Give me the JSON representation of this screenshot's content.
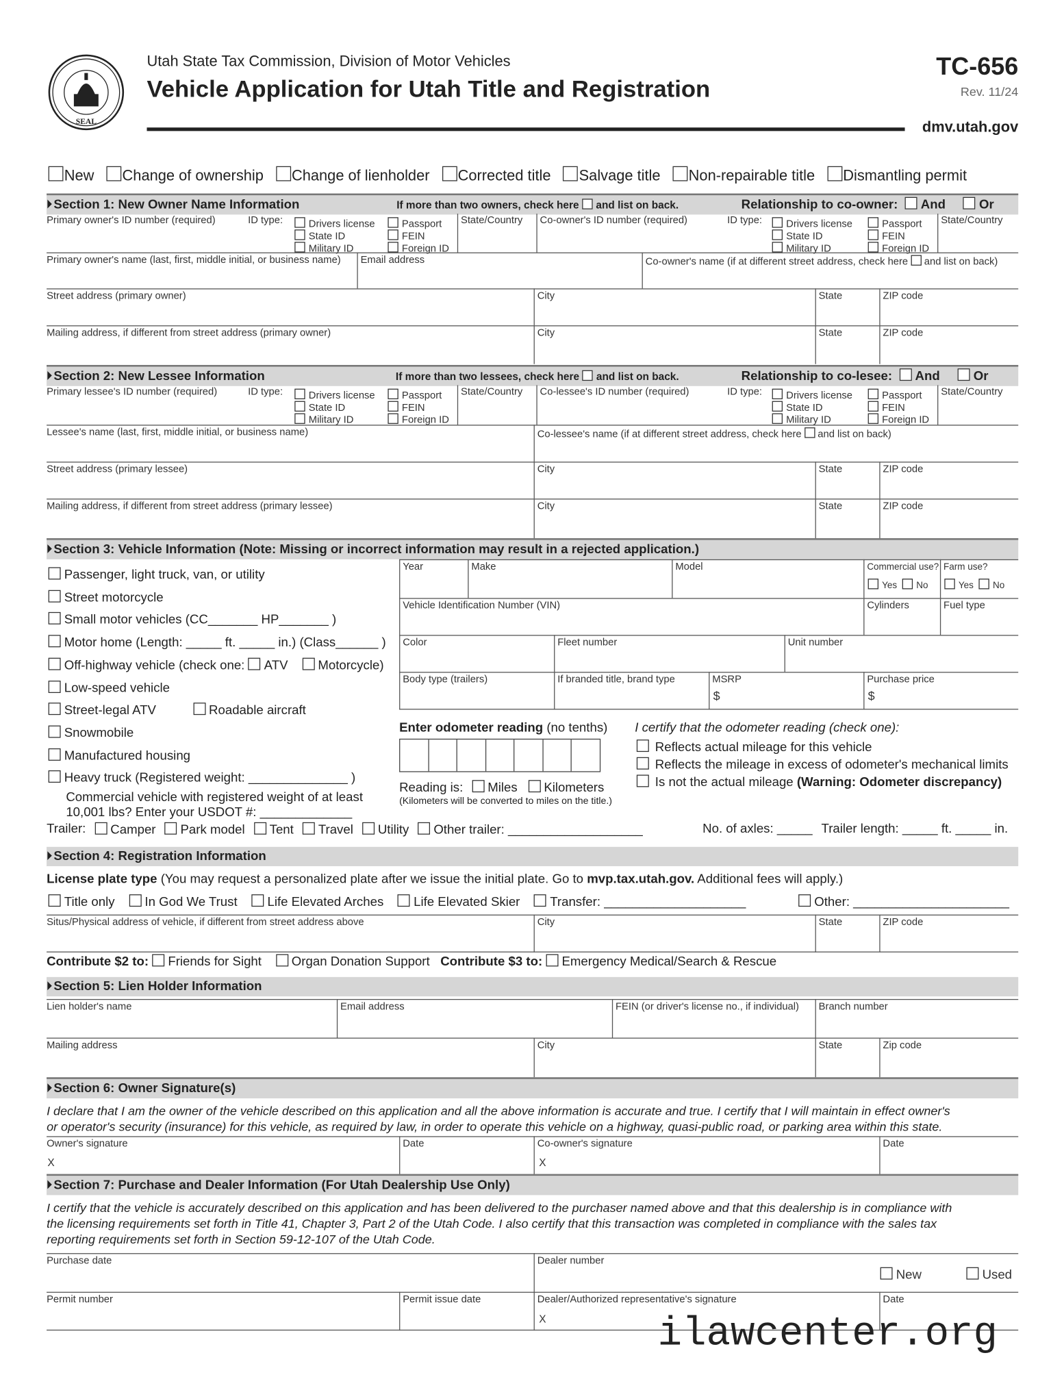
{
  "header": {
    "agency": "Utah State Tax Commission, Division of Motor Vehicles",
    "title": "Vehicle Application for Utah Title and Registration",
    "form_number": "TC-656",
    "revision": "Rev. 11/24",
    "website": "dmv.utah.gov",
    "seal_text": "UTAH STATE TAX COMMISSION SEAL"
  },
  "transaction_types": [
    "New",
    "Change of ownership",
    "Change of lienholder",
    "Corrected title",
    "Salvage title",
    "Non-repairable title",
    "Dismantling permit"
  ],
  "id_types": [
    "Drivers license",
    "State ID",
    "Military ID",
    "Passport",
    "FEIN",
    "Foreign ID"
  ],
  "id_type_label": "ID type:",
  "state_country": "State/Country",
  "and": "And",
  "or": "Or",
  "s1": {
    "title": "Section 1: New Owner Name Information",
    "note_a": "If more than two owners, check here",
    "note_b": "and list on back.",
    "relationship": "Relationship to co-owner:",
    "primary_id": "Primary owner's ID number (required)",
    "co_id": "Co-owner's ID number (required)",
    "primary_name": "Primary owner's name (last, first, middle initial, or business name)",
    "email": "Email address",
    "co_name_a": "Co-owner's name (if at different street address, check here",
    "co_name_b": "and list on back)",
    "street": "Street address (primary owner)",
    "city": "City",
    "state": "State",
    "zip": "ZIP code",
    "mailing": "Mailing address, if different from street address (primary owner)"
  },
  "s2": {
    "title": "Section 2: New Lessee Information",
    "note_a": "If more than two lessees, check here",
    "note_b": "and list on back.",
    "relationship": "Relationship to co-lesee:",
    "primary_id": "Primary lessee's ID number (required)",
    "co_id": "Co-lessee's ID number (required)",
    "name": "Lessee's name (last, first, middle initial, or business name)",
    "co_name_a": "Co-lessee's name (if at different street address, check here",
    "co_name_b": "and list on back)",
    "street": "Street address (primary lessee)",
    "mailing": "Mailing address, if different from street address (primary lessee)"
  },
  "s3": {
    "title": "Section 3: Vehicle Information (Note: Missing or incorrect information may result in a rejected application.)",
    "types": [
      "Passenger, light truck, van, or utility",
      "Street motorcycle",
      "Small motor vehicles (CC_______ HP_______ )",
      "Motor home (Length: _____ ft. _____ in.) (Class______ )",
      "Off-highway vehicle (check one:",
      "Low-speed vehicle",
      "Street-legal ATV",
      "Snowmobile",
      "Manufactured housing",
      "Heavy truck (Registered weight: ______________ )"
    ],
    "ohv_atv": "ATV",
    "ohv_moto": "Motorcycle)",
    "roadable": "Roadable aircraft",
    "commercial_a": "Commercial vehicle with registered weight of at least",
    "commercial_b": "10,001 lbs? Enter your USDOT #: _____________",
    "year": "Year",
    "make": "Make",
    "model": "Model",
    "commercial_use": "Commercial use?",
    "farm_use": "Farm use?",
    "yes": "Yes",
    "no": "No",
    "vin": "Vehicle Identification Number (VIN)",
    "cylinders": "Cylinders",
    "fuel": "Fuel type",
    "color": "Color",
    "fleet": "Fleet number",
    "unit": "Unit number",
    "body": "Body type (trailers)",
    "branded": "If branded title, brand type",
    "msrp": "MSRP",
    "purchase_price": "Purchase price",
    "dollar": "$",
    "odo_label": "Enter odometer reading",
    "odo_sub": "(no tenths)",
    "reading_is": "Reading is:",
    "miles": "Miles",
    "km": "Kilometers",
    "km_note": "(Kilometers will be converted to miles on the title.)",
    "certify": "I certify that the odometer reading (check one):",
    "cert_opts": [
      "Reflects actual mileage for this vehicle",
      "Reflects the mileage in excess of odometer's mechanical limits",
      "Is not the actual mileage"
    ],
    "warning": "(Warning: Odometer discrepancy)",
    "trailer": "Trailer:",
    "trailer_types": [
      "Camper",
      "Park model",
      "Tent",
      "Travel",
      "Utility",
      "Other trailer: ___________________"
    ],
    "axles": "No. of axles: _____",
    "trailer_length": "Trailer length: _____ ft. _____ in."
  },
  "s4": {
    "title": "Section 4: Registration Information",
    "plate_label": "License plate type",
    "plate_note_a": "(You may request a personalized plate after we issue the initial plate. Go to",
    "plate_site": "mvp.tax.utah.gov.",
    "plate_note_b": "Additional fees will apply.)",
    "plates": [
      "Title only",
      "In God We Trust",
      "Life Elevated Arches",
      "Life Elevated Skier",
      "Transfer: ____________________",
      "Other: ______________________"
    ],
    "situs": "Situs/Physical address of vehicle, if different from street address above",
    "contrib2": "Contribute $2 to:",
    "friends": "Friends for Sight",
    "organ": "Organ Donation Support",
    "contrib3": "Contribute $3 to:",
    "ems": "Emergency Medical/Search & Rescue"
  },
  "s5": {
    "title": "Section 5: Lien Holder Information",
    "name": "Lien holder's name",
    "email": "Email address",
    "fein": "FEIN (or driver's license no., if individual)",
    "branch": "Branch number",
    "mailing": "Mailing address",
    "zip": "Zip code"
  },
  "s6": {
    "title": "Section 6: Owner Signature(s)",
    "decl_1": "I declare that I am the owner of the vehicle described on this application and all the above information is accurate and true. I certify that I will maintain in effect owner's",
    "decl_2": "or operator's security (insurance) for this vehicle, as required by law, in order to operate this vehicle on a highway, quasi-public road, or parking area within this state.",
    "owner_sig": "Owner's signature",
    "date": "Date",
    "co_sig": "Co-owner's signature",
    "x": "X"
  },
  "s7": {
    "title": "Section 7: Purchase and Dealer Information (For Utah Dealership Use Only)",
    "cert_1": "I certify that the vehicle is accurately described on this application and has been delivered to the purchaser named above and that this dealership is in compliance with",
    "cert_2": "the licensing requirements set forth in Title 41, Chapter 3, Part 2 of the Utah Code. I also certify that this transaction was completed in compliance with the sales tax",
    "cert_3": "reporting requirements set forth in Section 59-12-107 of the Utah Code.",
    "purchase_date": "Purchase date",
    "dealer_number": "Dealer number",
    "new": "New",
    "used": "Used",
    "permit_number": "Permit number",
    "permit_date": "Permit issue date",
    "dealer_sig": "Dealer/Authorized representative's signature"
  },
  "watermark": "ilawcenter.org"
}
